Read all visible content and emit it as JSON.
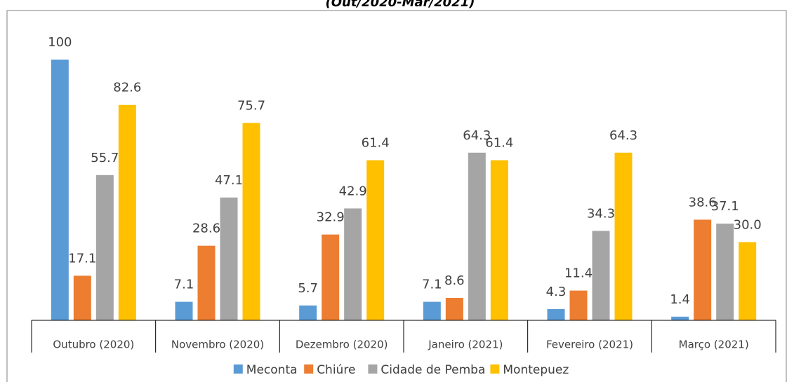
{
  "chart_data": {
    "type": "bar",
    "title": "(Out/2020-Mar/2021)",
    "categories": [
      "Outubro (2020)",
      "Novembro (2020)",
      "Dezembro (2020)",
      "Janeiro (2021)",
      "Fevereiro (2021)",
      "Março (2021)"
    ],
    "series": [
      {
        "name": "Meconta",
        "color": "#5b9bd5",
        "values": [
          100,
          7.1,
          5.7,
          7.1,
          4.3,
          1.4
        ]
      },
      {
        "name": "Chiúre",
        "color": "#ed7d31",
        "values": [
          17.1,
          28.6,
          32.9,
          8.6,
          11.4,
          38.6
        ]
      },
      {
        "name": "Cidade de Pemba",
        "color": "#a5a5a5",
        "values": [
          55.7,
          47.1,
          42.9,
          64.3,
          34.3,
          37.1
        ]
      },
      {
        "name": "Montepuez",
        "color": "#ffc000",
        "values": [
          82.6,
          75.7,
          61.4,
          61.4,
          64.3,
          30
        ],
        "value_labels": [
          "82.6",
          "75.7",
          "61.4",
          "61.4",
          "64.3",
          "30.0"
        ]
      }
    ],
    "ylim": [
      0,
      100
    ],
    "legend": "bottom"
  }
}
